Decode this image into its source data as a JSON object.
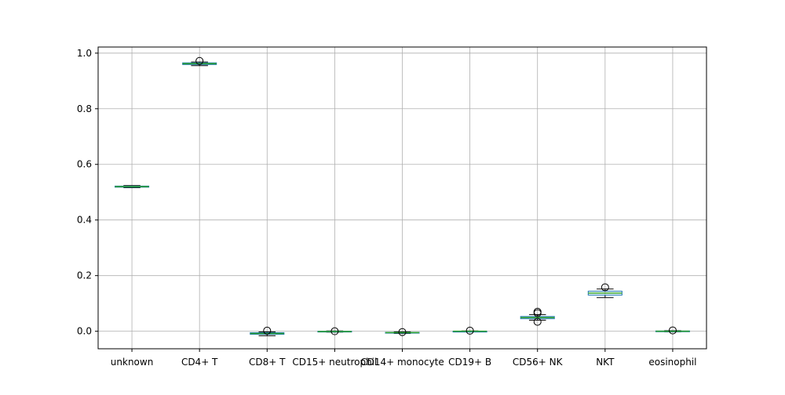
{
  "chart_data": {
    "type": "box",
    "categories": [
      "unknown",
      "CD4+ T",
      "CD8+ T",
      "CD15+ neutrophil",
      "CD14+ monocyte",
      "CD19+ B",
      "CD56+ NK",
      "NKT",
      "eosinophil"
    ],
    "boxes": [
      {
        "category": "unknown",
        "whisker_low": 0.516,
        "q1": 0.518,
        "median": 0.52,
        "q3": 0.522,
        "whisker_high": 0.524,
        "outliers": []
      },
      {
        "category": "CD4+ T",
        "whisker_low": 0.955,
        "q1": 0.959,
        "median": 0.962,
        "q3": 0.965,
        "whisker_high": 0.968,
        "outliers": [
          0.972
        ]
      },
      {
        "category": "CD8+ T",
        "whisker_low": -0.016,
        "q1": -0.011,
        "median": -0.008,
        "q3": -0.005,
        "whisker_high": -0.002,
        "outliers": [
          0.002
        ]
      },
      {
        "category": "CD15+ neutrophil",
        "whisker_low": -0.003,
        "q1": -0.002,
        "median": -0.001,
        "q3": 0.0,
        "whisker_high": 0.001,
        "outliers": [
          0.0
        ]
      },
      {
        "category": "CD14+ monocyte",
        "whisker_low": -0.008,
        "q1": -0.006,
        "median": -0.005,
        "q3": -0.004,
        "whisker_high": -0.002,
        "outliers": [
          -0.003
        ]
      },
      {
        "category": "CD19+ B",
        "whisker_low": -0.002,
        "q1": -0.001,
        "median": 0.0,
        "q3": 0.0,
        "whisker_high": 0.001,
        "outliers": [
          0.002
        ]
      },
      {
        "category": "CD56+ NK",
        "whisker_low": 0.04,
        "q1": 0.045,
        "median": 0.049,
        "q3": 0.053,
        "whisker_high": 0.06,
        "outliers": [
          0.065,
          0.07,
          0.034
        ]
      },
      {
        "category": "NKT",
        "whisker_low": 0.121,
        "q1": 0.13,
        "median": 0.137,
        "q3": 0.144,
        "whisker_high": 0.152,
        "outliers": [
          0.158
        ]
      },
      {
        "category": "eosinophil",
        "whisker_low": -0.002,
        "q1": -0.001,
        "median": 0.0,
        "q3": 0.001,
        "whisker_high": 0.002,
        "outliers": [
          0.003
        ]
      }
    ],
    "yticks": [
      0.0,
      0.2,
      0.4,
      0.6,
      0.8,
      1.0
    ],
    "ytick_labels": [
      "0.0",
      "0.2",
      "0.4",
      "0.6",
      "0.8",
      "1.0"
    ],
    "ylim": [
      -0.063,
      1.022
    ],
    "grid": true,
    "colors": {
      "box": "#1f77b4",
      "median": "#2ca02c",
      "whisker": "#000000",
      "grid": "#b0b0b0"
    },
    "title": "",
    "xlabel": "",
    "ylabel": ""
  }
}
